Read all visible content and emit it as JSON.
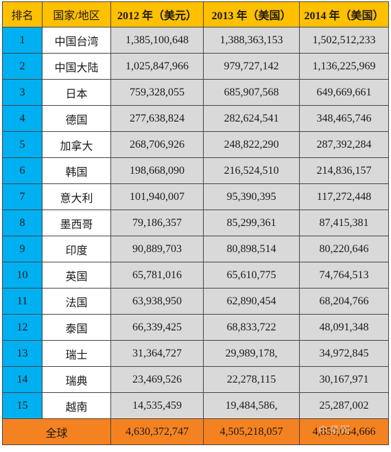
{
  "headers": [
    "排名",
    "国家/地区",
    "2012 年（美元）",
    "2013 年（美国）",
    "2014 年（美国）"
  ],
  "rows": [
    {
      "rank": "1",
      "country": "中国台湾",
      "y2012": "1,385,100,648",
      "y2013": "1,388,363,153",
      "y2014": "1,502,512,233"
    },
    {
      "rank": "2",
      "country": "中国大陆",
      "y2012": "1,025,847,966",
      "y2013": "979,727,142",
      "y2014": "1,136,225,969"
    },
    {
      "rank": "3",
      "country": "日本",
      "y2012": "759,328,055",
      "y2013": "685,907,568",
      "y2014": "649,669,661"
    },
    {
      "rank": "4",
      "country": "德国",
      "y2012": "277,638,824",
      "y2013": "282,624,541",
      "y2014": "348,465,746"
    },
    {
      "rank": "5",
      "country": "加拿大",
      "y2012": "268,706,926",
      "y2013": "248,822,290",
      "y2014": "287,392,284"
    },
    {
      "rank": "6",
      "country": "韩国",
      "y2012": "198,668,090",
      "y2013": "216,524,510",
      "y2014": "214,836,157"
    },
    {
      "rank": "7",
      "country": "意大利",
      "y2012": "101,940,007",
      "y2013": "95,390,395",
      "y2014": "117,272,448"
    },
    {
      "rank": "8",
      "country": "墨西哥",
      "y2012": "79,186,357",
      "y2013": "85,299,361",
      "y2014": "87,415,381"
    },
    {
      "rank": "9",
      "country": "印度",
      "y2012": "90,889,703",
      "y2013": "80,898,514",
      "y2014": "80,220,646"
    },
    {
      "rank": "10",
      "country": "英国",
      "y2012": "65,781,016",
      "y2013": "65,610,775",
      "y2014": "74,764,513"
    },
    {
      "rank": "11",
      "country": "法国",
      "y2012": "63,938,950",
      "y2013": "62,890,454",
      "y2014": "68,204,766"
    },
    {
      "rank": "12",
      "country": "泰国",
      "y2012": "66,339,425",
      "y2013": "68,833,722",
      "y2014": "48,091,348"
    },
    {
      "rank": "13",
      "country": "瑞士",
      "y2012": "31,364,727",
      "y2013": "29,989,178,",
      "y2014": "34,972,845"
    },
    {
      "rank": "14",
      "country": "瑞典",
      "y2012": "23,469,526",
      "y2013": "22,278,115",
      "y2014": "30,167,971"
    },
    {
      "rank": "15",
      "country": "越南",
      "y2012": "14,535,459",
      "y2013": "19,484,586,",
      "y2014": "25,287,002"
    }
  ],
  "total": {
    "label": "全球",
    "y2012": "4,630,372,747",
    "y2013": "4,505,218,057",
    "y2014": "4,850,054,666"
  },
  "watermark": "中紧网",
  "colors": {
    "header": "#ffc000",
    "rank": "#00b0f0",
    "number_cells": "#d9d9d9",
    "total_row": "#f58220"
  }
}
